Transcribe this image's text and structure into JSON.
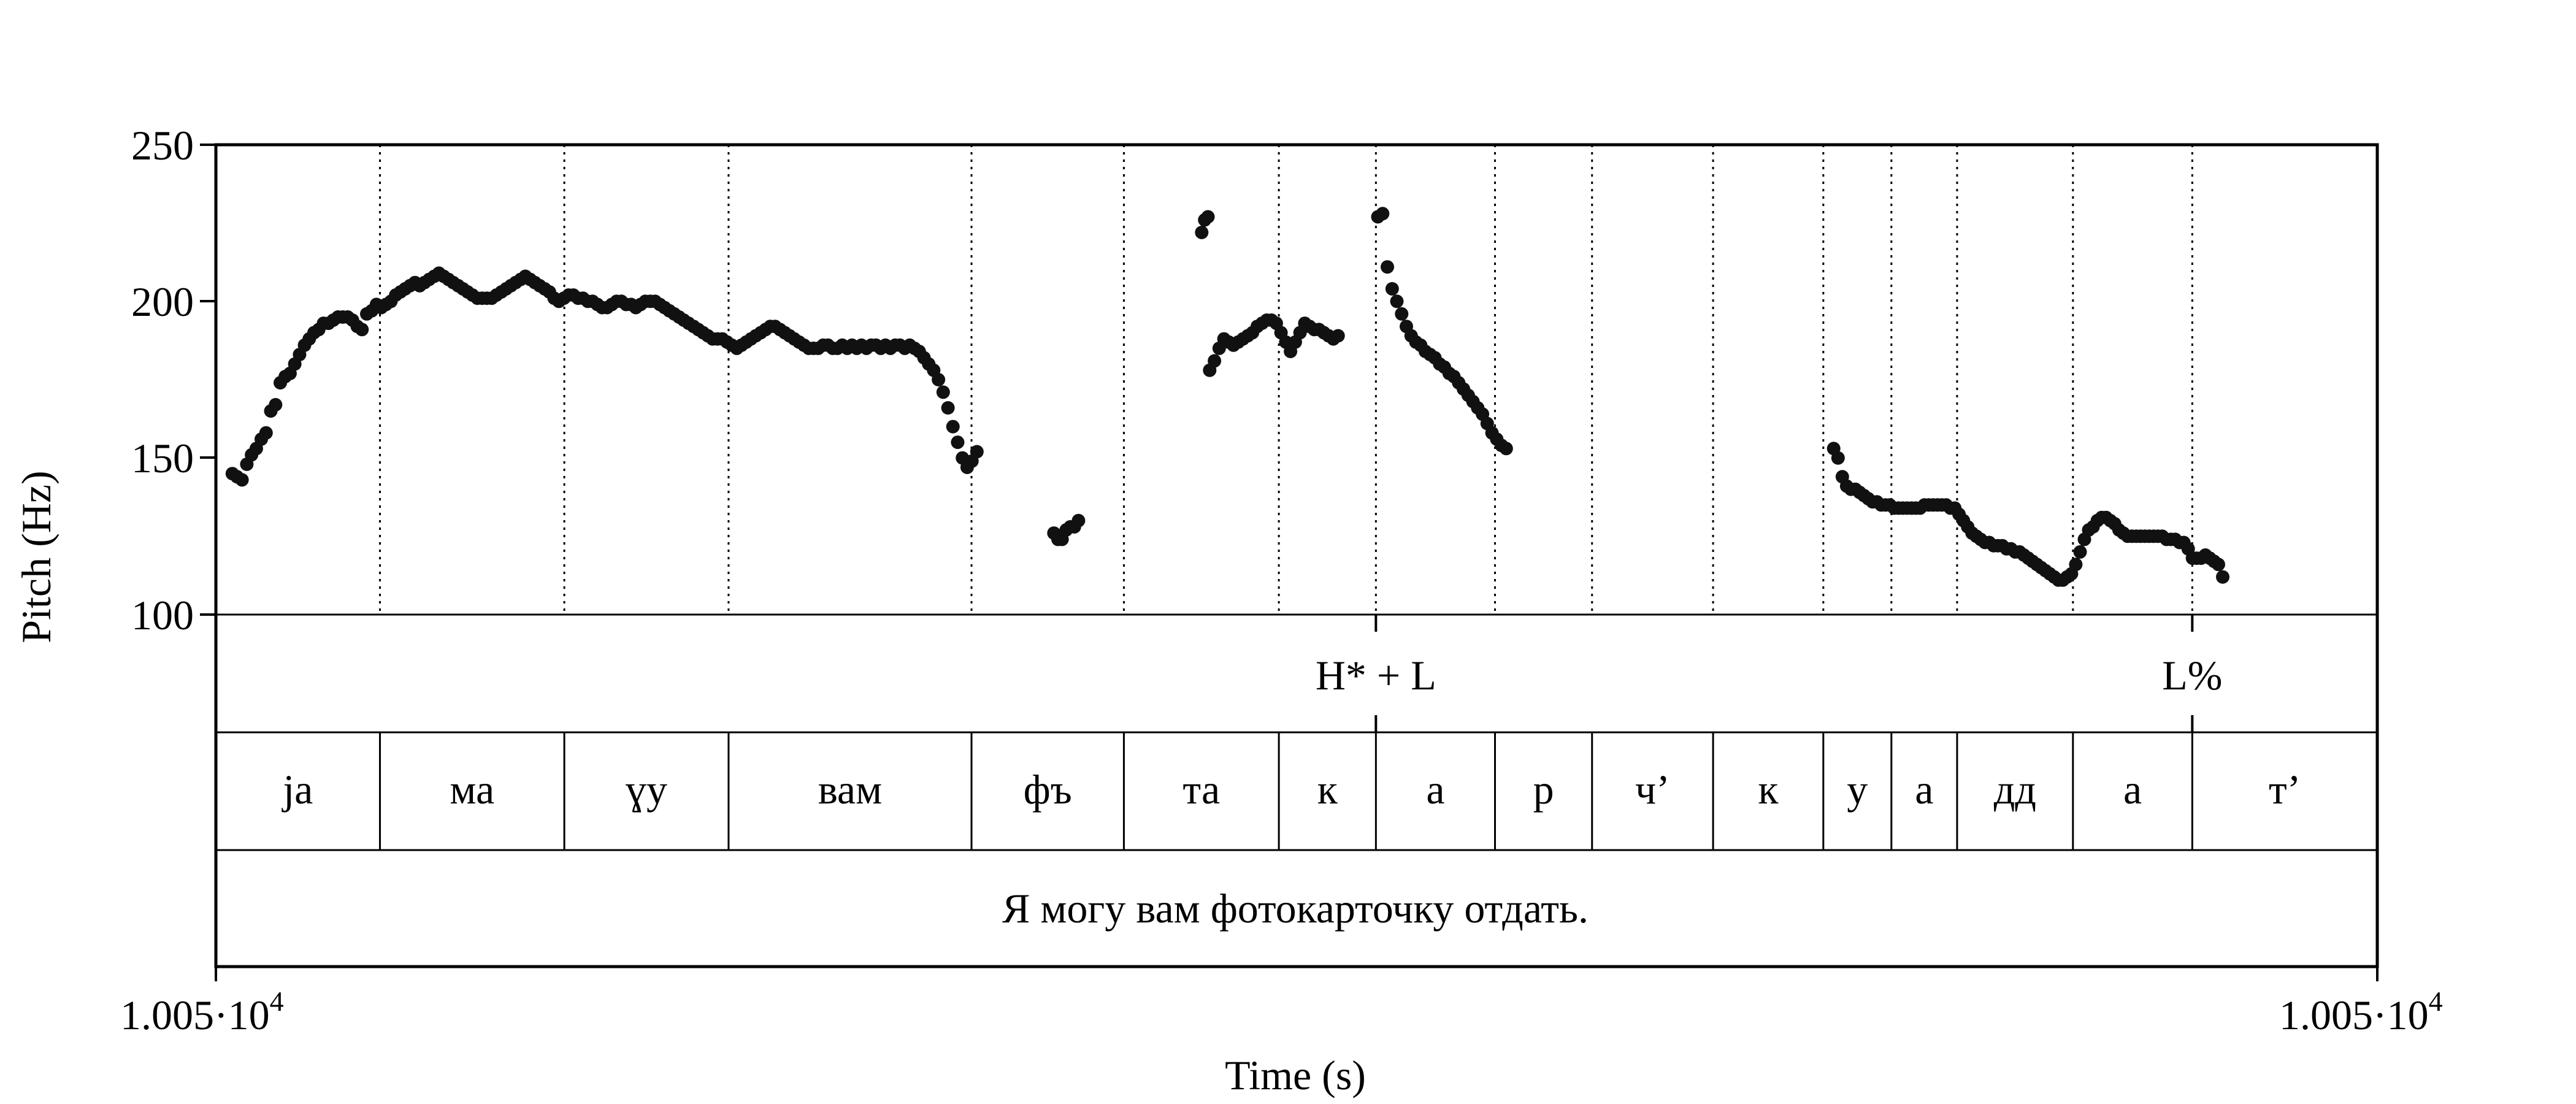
{
  "chart_data": {
    "type": "scatter",
    "ylabel": "Pitch (Hz)",
    "xlabel": "Time (s)",
    "ylim": [
      100,
      250
    ],
    "yticks": [
      100,
      150,
      200,
      250
    ],
    "x_tick_labels": {
      "left": {
        "base": "1.005·10",
        "exp": "4"
      },
      "right": {
        "base": "1.005·10",
        "exp": "4"
      }
    },
    "x_unit_note": "x values below are relative time within the displayed window, 0 = left edge, 1 = right edge",
    "marker_color": "#111111",
    "boundaries": [
      0.0759,
      0.1612,
      0.2372,
      0.3496,
      0.4201,
      0.4918,
      0.5367,
      0.5918,
      0.6367,
      0.6927,
      0.7437,
      0.7752,
      0.8056,
      0.8592,
      0.9144
    ],
    "tones": [
      {
        "label": "H* + L",
        "x": 0.5367
      },
      {
        "label": "L%",
        "x": 0.9144
      }
    ],
    "syllables": [
      "ja",
      "ма",
      "ɣу",
      "вам",
      "фъ",
      "та",
      "к",
      "а",
      "р",
      "ч’",
      "к",
      "у",
      "а",
      "дд",
      "а",
      "т’"
    ],
    "sentence": "Я могу вам фотокарточку отдать.",
    "points": [
      [
        0.0076,
        145
      ],
      [
        0.0098,
        144
      ],
      [
        0.0121,
        143
      ],
      [
        0.0143,
        148
      ],
      [
        0.0165,
        151
      ],
      [
        0.0187,
        153
      ],
      [
        0.021,
        156
      ],
      [
        0.0232,
        158
      ],
      [
        0.0254,
        165
      ],
      [
        0.0276,
        167
      ],
      [
        0.0298,
        174
      ],
      [
        0.0321,
        176
      ],
      [
        0.0343,
        177
      ],
      [
        0.0365,
        180
      ],
      [
        0.0387,
        183
      ],
      [
        0.041,
        186
      ],
      [
        0.0432,
        188
      ],
      [
        0.0454,
        190
      ],
      [
        0.0476,
        191
      ],
      [
        0.0498,
        193
      ],
      [
        0.0521,
        193
      ],
      [
        0.0543,
        194
      ],
      [
        0.0565,
        195
      ],
      [
        0.0587,
        195
      ],
      [
        0.061,
        195
      ],
      [
        0.0632,
        194
      ],
      [
        0.0654,
        192
      ],
      [
        0.0676,
        191
      ],
      [
        0.0698,
        196
      ],
      [
        0.0721,
        197
      ],
      [
        0.0743,
        199
      ],
      [
        0.0765,
        198
      ],
      [
        0.0787,
        199
      ],
      [
        0.081,
        200
      ],
      [
        0.0832,
        202
      ],
      [
        0.0854,
        203
      ],
      [
        0.0876,
        204
      ],
      [
        0.0898,
        205
      ],
      [
        0.0921,
        206
      ],
      [
        0.0943,
        205
      ],
      [
        0.0965,
        206
      ],
      [
        0.0987,
        207
      ],
      [
        0.101,
        208
      ],
      [
        0.1032,
        209
      ],
      [
        0.1054,
        208
      ],
      [
        0.1076,
        207
      ],
      [
        0.1098,
        206
      ],
      [
        0.1121,
        205
      ],
      [
        0.1143,
        204
      ],
      [
        0.1165,
        203
      ],
      [
        0.1187,
        202
      ],
      [
        0.121,
        201
      ],
      [
        0.1232,
        201
      ],
      [
        0.1254,
        201
      ],
      [
        0.1276,
        201
      ],
      [
        0.1298,
        202
      ],
      [
        0.1321,
        203
      ],
      [
        0.1343,
        204
      ],
      [
        0.1365,
        205
      ],
      [
        0.1387,
        206
      ],
      [
        0.141,
        207
      ],
      [
        0.1432,
        208
      ],
      [
        0.1454,
        207
      ],
      [
        0.1476,
        206
      ],
      [
        0.1498,
        205
      ],
      [
        0.1521,
        204
      ],
      [
        0.1543,
        203
      ],
      [
        0.1565,
        201
      ],
      [
        0.1587,
        200
      ],
      [
        0.161,
        201
      ],
      [
        0.1632,
        202
      ],
      [
        0.1654,
        202
      ],
      [
        0.1676,
        201
      ],
      [
        0.1698,
        201
      ],
      [
        0.1721,
        200
      ],
      [
        0.1743,
        200
      ],
      [
        0.1765,
        199
      ],
      [
        0.1787,
        198
      ],
      [
        0.181,
        198
      ],
      [
        0.1832,
        199
      ],
      [
        0.1854,
        200
      ],
      [
        0.1876,
        200
      ],
      [
        0.1898,
        199
      ],
      [
        0.1921,
        199
      ],
      [
        0.1943,
        198
      ],
      [
        0.1965,
        199
      ],
      [
        0.1987,
        200
      ],
      [
        0.201,
        200
      ],
      [
        0.2032,
        200
      ],
      [
        0.2054,
        199
      ],
      [
        0.2076,
        198
      ],
      [
        0.2098,
        197
      ],
      [
        0.2121,
        196
      ],
      [
        0.2143,
        195
      ],
      [
        0.2165,
        194
      ],
      [
        0.2187,
        193
      ],
      [
        0.221,
        192
      ],
      [
        0.2232,
        191
      ],
      [
        0.2254,
        190
      ],
      [
        0.2276,
        189
      ],
      [
        0.2298,
        188
      ],
      [
        0.2321,
        188
      ],
      [
        0.2343,
        188
      ],
      [
        0.2365,
        187
      ],
      [
        0.2387,
        186
      ],
      [
        0.241,
        185
      ],
      [
        0.2432,
        186
      ],
      [
        0.2454,
        187
      ],
      [
        0.2476,
        188
      ],
      [
        0.2498,
        189
      ],
      [
        0.2521,
        190
      ],
      [
        0.2543,
        191
      ],
      [
        0.2565,
        192
      ],
      [
        0.2587,
        192
      ],
      [
        0.261,
        191
      ],
      [
        0.2632,
        190
      ],
      [
        0.2654,
        189
      ],
      [
        0.2676,
        188
      ],
      [
        0.2698,
        187
      ],
      [
        0.2721,
        186
      ],
      [
        0.2743,
        185
      ],
      [
        0.2765,
        185
      ],
      [
        0.2787,
        185
      ],
      [
        0.281,
        186
      ],
      [
        0.2832,
        186
      ],
      [
        0.2854,
        185
      ],
      [
        0.2876,
        185
      ],
      [
        0.2898,
        186
      ],
      [
        0.2921,
        185
      ],
      [
        0.2943,
        186
      ],
      [
        0.2965,
        185
      ],
      [
        0.2987,
        186
      ],
      [
        0.301,
        185
      ],
      [
        0.3032,
        186
      ],
      [
        0.3054,
        186
      ],
      [
        0.3076,
        185
      ],
      [
        0.3098,
        186
      ],
      [
        0.3121,
        185
      ],
      [
        0.3143,
        186
      ],
      [
        0.3165,
        186
      ],
      [
        0.3187,
        185
      ],
      [
        0.321,
        186
      ],
      [
        0.3232,
        185
      ],
      [
        0.3254,
        184
      ],
      [
        0.3276,
        182
      ],
      [
        0.3298,
        180
      ],
      [
        0.3321,
        178
      ],
      [
        0.3343,
        175
      ],
      [
        0.3365,
        171
      ],
      [
        0.3387,
        166
      ],
      [
        0.341,
        160
      ],
      [
        0.3432,
        155
      ],
      [
        0.3454,
        150
      ],
      [
        0.3476,
        147
      ],
      [
        0.3498,
        149
      ],
      [
        0.3521,
        152
      ],
      [
        0.3877,
        126
      ],
      [
        0.3896,
        124
      ],
      [
        0.3915,
        124
      ],
      [
        0.3934,
        127
      ],
      [
        0.3953,
        128
      ],
      [
        0.3972,
        128
      ],
      [
        0.3991,
        130
      ],
      [
        0.4561,
        222
      ],
      [
        0.4575,
        226
      ],
      [
        0.459,
        227
      ],
      [
        0.4598,
        178
      ],
      [
        0.462,
        181
      ],
      [
        0.4642,
        185
      ],
      [
        0.4664,
        188
      ],
      [
        0.4686,
        187
      ],
      [
        0.4708,
        186
      ],
      [
        0.473,
        187
      ],
      [
        0.4752,
        188
      ],
      [
        0.4774,
        189
      ],
      [
        0.4796,
        190
      ],
      [
        0.4818,
        192
      ],
      [
        0.484,
        193
      ],
      [
        0.4862,
        194
      ],
      [
        0.4884,
        194
      ],
      [
        0.4906,
        193
      ],
      [
        0.4928,
        190
      ],
      [
        0.495,
        187
      ],
      [
        0.4972,
        184
      ],
      [
        0.4994,
        187
      ],
      [
        0.5016,
        190
      ],
      [
        0.5038,
        193
      ],
      [
        0.506,
        192
      ],
      [
        0.5082,
        191
      ],
      [
        0.5104,
        191
      ],
      [
        0.5126,
        190
      ],
      [
        0.5148,
        189
      ],
      [
        0.517,
        188
      ],
      [
        0.5192,
        189
      ],
      [
        0.5376,
        227
      ],
      [
        0.5398,
        228
      ],
      [
        0.542,
        211
      ],
      [
        0.5442,
        204
      ],
      [
        0.5464,
        200
      ],
      [
        0.5486,
        196
      ],
      [
        0.5508,
        192
      ],
      [
        0.553,
        189
      ],
      [
        0.5552,
        187
      ],
      [
        0.5574,
        186
      ],
      [
        0.5596,
        184
      ],
      [
        0.5618,
        183
      ],
      [
        0.564,
        182
      ],
      [
        0.5662,
        180
      ],
      [
        0.5684,
        179
      ],
      [
        0.5706,
        177
      ],
      [
        0.5728,
        176
      ],
      [
        0.575,
        174
      ],
      [
        0.5772,
        172
      ],
      [
        0.5794,
        170
      ],
      [
        0.5816,
        168
      ],
      [
        0.5838,
        166
      ],
      [
        0.586,
        164
      ],
      [
        0.5882,
        161
      ],
      [
        0.5904,
        158
      ],
      [
        0.5926,
        156
      ],
      [
        0.5948,
        154
      ],
      [
        0.597,
        153
      ],
      [
        0.7485,
        153
      ],
      [
        0.7505,
        150
      ],
      [
        0.7525,
        144
      ],
      [
        0.7545,
        141
      ],
      [
        0.7565,
        140
      ],
      [
        0.7585,
        140
      ],
      [
        0.7605,
        139
      ],
      [
        0.7625,
        138
      ],
      [
        0.7645,
        137
      ],
      [
        0.7665,
        136
      ],
      [
        0.7685,
        136
      ],
      [
        0.7705,
        135
      ],
      [
        0.7725,
        135
      ],
      [
        0.7745,
        135
      ],
      [
        0.7765,
        134
      ],
      [
        0.7785,
        134
      ],
      [
        0.7805,
        134
      ],
      [
        0.7825,
        134
      ],
      [
        0.7845,
        134
      ],
      [
        0.7865,
        134
      ],
      [
        0.7885,
        134
      ],
      [
        0.7905,
        135
      ],
      [
        0.7925,
        135
      ],
      [
        0.7945,
        135
      ],
      [
        0.7965,
        135
      ],
      [
        0.7985,
        135
      ],
      [
        0.8005,
        135
      ],
      [
        0.8025,
        134
      ],
      [
        0.8045,
        134
      ],
      [
        0.8065,
        132
      ],
      [
        0.8085,
        130
      ],
      [
        0.8105,
        128
      ],
      [
        0.8125,
        126
      ],
      [
        0.8145,
        125
      ],
      [
        0.8165,
        124
      ],
      [
        0.8185,
        123
      ],
      [
        0.8205,
        123
      ],
      [
        0.8225,
        122
      ],
      [
        0.8245,
        122
      ],
      [
        0.8265,
        122
      ],
      [
        0.8285,
        121
      ],
      [
        0.8305,
        121
      ],
      [
        0.8325,
        120
      ],
      [
        0.8345,
        120
      ],
      [
        0.8365,
        119
      ],
      [
        0.8385,
        118
      ],
      [
        0.8405,
        117
      ],
      [
        0.8425,
        116
      ],
      [
        0.8445,
        115
      ],
      [
        0.8465,
        114
      ],
      [
        0.8485,
        113
      ],
      [
        0.8505,
        112
      ],
      [
        0.8525,
        111
      ],
      [
        0.8545,
        111
      ],
      [
        0.8565,
        112
      ],
      [
        0.8585,
        113
      ],
      [
        0.8605,
        116
      ],
      [
        0.8625,
        120
      ],
      [
        0.8645,
        124
      ],
      [
        0.8665,
        127
      ],
      [
        0.8685,
        128
      ],
      [
        0.8705,
        130
      ],
      [
        0.8725,
        131
      ],
      [
        0.8745,
        131
      ],
      [
        0.8765,
        130
      ],
      [
        0.8785,
        129
      ],
      [
        0.8805,
        127
      ],
      [
        0.8825,
        126
      ],
      [
        0.8845,
        125
      ],
      [
        0.8865,
        125
      ],
      [
        0.8885,
        125
      ],
      [
        0.8905,
        125
      ],
      [
        0.8925,
        125
      ],
      [
        0.8945,
        125
      ],
      [
        0.8965,
        125
      ],
      [
        0.8985,
        125
      ],
      [
        0.9005,
        125
      ],
      [
        0.9025,
        124
      ],
      [
        0.9045,
        124
      ],
      [
        0.9065,
        124
      ],
      [
        0.9085,
        123
      ],
      [
        0.9105,
        123
      ],
      [
        0.9125,
        121
      ],
      [
        0.9145,
        118
      ],
      [
        0.9165,
        118
      ],
      [
        0.9185,
        118
      ],
      [
        0.9205,
        119
      ],
      [
        0.9225,
        118
      ],
      [
        0.9245,
        117
      ],
      [
        0.9265,
        116
      ],
      [
        0.9285,
        112
      ]
    ]
  }
}
